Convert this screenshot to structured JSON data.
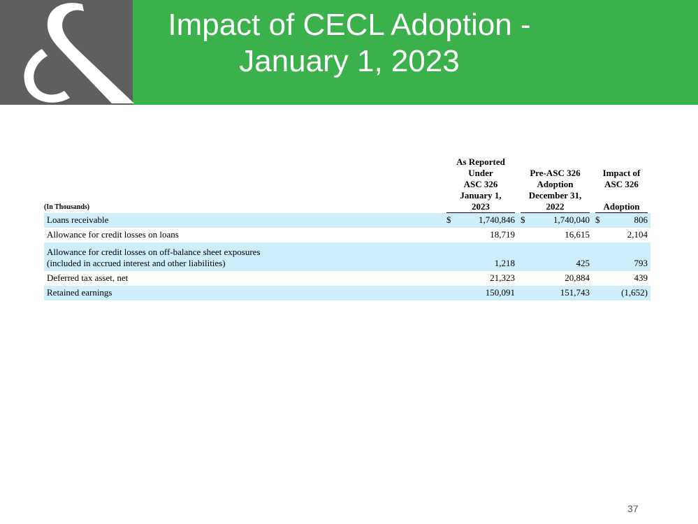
{
  "slide": {
    "title_line1": "Impact of CECL Adoption -",
    "title_line2": "January 1, 2023",
    "page_number": "37"
  },
  "colors": {
    "header_green": "#3ab14a",
    "header_gray": "#5f5f5f",
    "row_highlight": "#cdeefa"
  },
  "table": {
    "header_units": "(In Thousands)",
    "columns": [
      [
        "As Reported",
        "Under",
        "ASC 326",
        "January 1,",
        "2023"
      ],
      [
        "Pre-ASC 326",
        "Adoption",
        "December 31,",
        "2022"
      ],
      [
        "Impact of",
        "ASC 326",
        "",
        "Adoption"
      ]
    ],
    "rows": [
      {
        "label": [
          "Loans receivable"
        ],
        "dollar": "$",
        "values": [
          "1,740,846",
          "1,740,040",
          "806"
        ]
      },
      {
        "label": [
          "Allowance for credit losses on loans"
        ],
        "dollar": "",
        "values": [
          "18,719",
          "16,615",
          "2,104"
        ]
      },
      {
        "label": [
          "Allowance for credit losses on off-balance sheet exposures",
          "(included in accrued interest and other liabilities)"
        ],
        "dollar": "",
        "values": [
          "1,218",
          "425",
          "793"
        ]
      },
      {
        "label": [
          "Deferred tax asset, net"
        ],
        "dollar": "",
        "values": [
          "21,323",
          "20,884",
          "439"
        ]
      },
      {
        "label": [
          "Retained earnings"
        ],
        "dollar": "",
        "values": [
          "150,091",
          "151,743",
          "(1,652)"
        ]
      }
    ]
  }
}
